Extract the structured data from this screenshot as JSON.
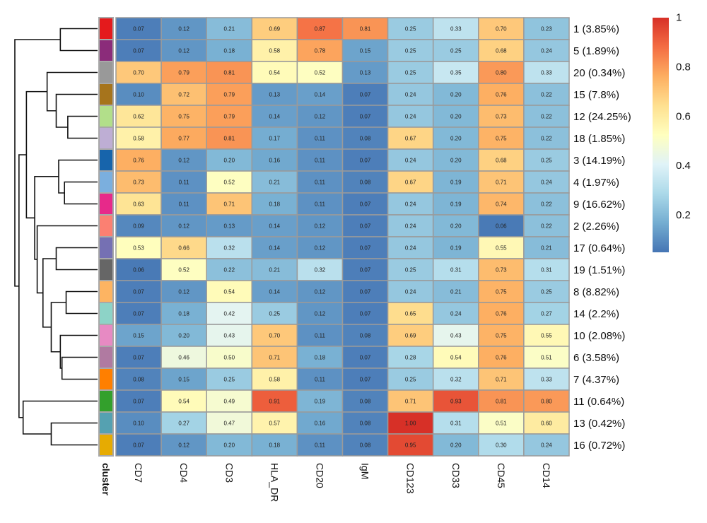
{
  "chart_data": {
    "type": "heatmap",
    "title": "",
    "columns": [
      "CD7",
      "CD4",
      "CD3",
      "HLA_DR",
      "CD20",
      "IgM",
      "CD123",
      "CD33",
      "CD45",
      "CD14"
    ],
    "rows": [
      {
        "cluster": "1",
        "label": "1 (3.85%)",
        "color": "#E41A1C",
        "values": [
          0.07,
          0.12,
          0.21,
          0.69,
          0.87,
          0.81,
          0.25,
          0.33,
          0.7,
          0.23
        ]
      },
      {
        "cluster": "5",
        "label": "5 (1.89%)",
        "color": "#8B2C7A",
        "values": [
          0.07,
          0.12,
          0.18,
          0.58,
          0.78,
          0.15,
          0.25,
          0.25,
          0.68,
          0.24
        ]
      },
      {
        "cluster": "20",
        "label": "20 (0.34%)",
        "color": "#999999",
        "values": [
          0.7,
          0.79,
          0.81,
          0.54,
          0.52,
          0.13,
          0.25,
          0.35,
          0.8,
          0.33
        ]
      },
      {
        "cluster": "15",
        "label": "15 (7.8%)",
        "color": "#A6741C",
        "values": [
          0.1,
          0.72,
          0.79,
          0.13,
          0.14,
          0.07,
          0.24,
          0.2,
          0.76,
          0.22
        ]
      },
      {
        "cluster": "12",
        "label": "12 (24.25%)",
        "color": "#B2DF8A",
        "values": [
          0.62,
          0.75,
          0.79,
          0.14,
          0.12,
          0.07,
          0.24,
          0.2,
          0.73,
          0.22
        ]
      },
      {
        "cluster": "18",
        "label": "18 (1.85%)",
        "color": "#BEAED4",
        "values": [
          0.58,
          0.77,
          0.81,
          0.17,
          0.11,
          0.08,
          0.67,
          0.2,
          0.75,
          0.22
        ]
      },
      {
        "cluster": "3",
        "label": "3 (14.19%)",
        "color": "#1764AB",
        "values": [
          0.76,
          0.12,
          0.2,
          0.16,
          0.11,
          0.07,
          0.24,
          0.2,
          0.68,
          0.25
        ]
      },
      {
        "cluster": "4",
        "label": "4 (1.97%)",
        "color": "#7BAFDE",
        "values": [
          0.73,
          0.11,
          0.52,
          0.21,
          0.11,
          0.08,
          0.67,
          0.19,
          0.71,
          0.24
        ]
      },
      {
        "cluster": "9",
        "label": "9 (16.62%)",
        "color": "#E7298A",
        "values": [
          0.63,
          0.11,
          0.71,
          0.18,
          0.11,
          0.07,
          0.24,
          0.19,
          0.74,
          0.22
        ]
      },
      {
        "cluster": "2",
        "label": "2 (2.26%)",
        "color": "#FB8072",
        "values": [
          0.09,
          0.12,
          0.13,
          0.14,
          0.12,
          0.07,
          0.24,
          0.2,
          0.06,
          0.22
        ]
      },
      {
        "cluster": "17",
        "label": "17 (0.64%)",
        "color": "#7570B3",
        "values": [
          0.53,
          0.66,
          0.32,
          0.14,
          0.12,
          0.07,
          0.24,
          0.19,
          0.55,
          0.21
        ]
      },
      {
        "cluster": "19",
        "label": "19 (1.51%)",
        "color": "#666666",
        "values": [
          0.06,
          0.52,
          0.22,
          0.21,
          0.32,
          0.07,
          0.25,
          0.31,
          0.73,
          0.31
        ]
      },
      {
        "cluster": "8",
        "label": "8 (8.82%)",
        "color": "#FDB462",
        "values": [
          0.07,
          0.12,
          0.54,
          0.14,
          0.12,
          0.07,
          0.24,
          0.21,
          0.75,
          0.25
        ]
      },
      {
        "cluster": "14",
        "label": "14 (2.2%)",
        "color": "#8DD3C7",
        "values": [
          0.07,
          0.18,
          0.42,
          0.25,
          0.12,
          0.07,
          0.65,
          0.24,
          0.76,
          0.27
        ]
      },
      {
        "cluster": "10",
        "label": "10 (2.08%)",
        "color": "#E78AC3",
        "values": [
          0.15,
          0.2,
          0.43,
          0.7,
          0.11,
          0.08,
          0.69,
          0.43,
          0.75,
          0.55
        ]
      },
      {
        "cluster": "6",
        "label": "6 (3.58%)",
        "color": "#B07AA1",
        "values": [
          0.07,
          0.46,
          0.5,
          0.71,
          0.18,
          0.07,
          0.28,
          0.54,
          0.76,
          0.51
        ]
      },
      {
        "cluster": "7",
        "label": "7 (4.37%)",
        "color": "#FF7F00",
        "values": [
          0.08,
          0.15,
          0.25,
          0.58,
          0.11,
          0.07,
          0.25,
          0.32,
          0.71,
          0.33
        ]
      },
      {
        "cluster": "11",
        "label": "11 (0.64%)",
        "color": "#33A02C",
        "values": [
          0.07,
          0.54,
          0.49,
          0.91,
          0.19,
          0.08,
          0.71,
          0.93,
          0.81,
          0.8
        ]
      },
      {
        "cluster": "13",
        "label": "13 (0.42%)",
        "color": "#55A1B1",
        "values": [
          0.1,
          0.27,
          0.47,
          0.57,
          0.16,
          0.08,
          1.0,
          0.31,
          0.51,
          0.6
        ]
      },
      {
        "cluster": "16",
        "label": "16 (0.72%)",
        "color": "#E6AB02",
        "values": [
          0.07,
          0.12,
          0.2,
          0.18,
          0.11,
          0.08,
          0.95,
          0.2,
          0.3,
          0.24
        ]
      }
    ],
    "annotation_label": "cluster",
    "color_scale": {
      "range": [
        0.05,
        1.0
      ],
      "stops": [
        "#4575B4",
        "#74ADD1",
        "#ABD9E9",
        "#E0F3F8",
        "#FFFFBF",
        "#FEE090",
        "#FDAE61",
        "#F46D43",
        "#D73027"
      ],
      "legend_ticks": [
        "0.2",
        "0.4",
        "0.6",
        "0.8",
        "1"
      ],
      "legend_tick_values": [
        0.2,
        0.4,
        0.6,
        0.8,
        1.0
      ],
      "legend_placement": "right"
    },
    "dendrogram": {
      "orientation": "left",
      "merges": [
        {
          "id": "a",
          "children": [
            "1",
            "5"
          ],
          "height": 0.45
        },
        {
          "id": "b1",
          "children": [
            "12",
            "18"
          ],
          "height": 0.36
        },
        {
          "id": "b2",
          "children": [
            "15",
            "b1"
          ],
          "height": 0.5
        },
        {
          "id": "b",
          "children": [
            "20",
            "b2"
          ],
          "height": 0.61
        },
        {
          "id": "c1",
          "children": [
            "4",
            "9"
          ],
          "height": 0.4
        },
        {
          "id": "c",
          "children": [
            "3",
            "c1"
          ],
          "height": 0.47
        },
        {
          "id": "e1",
          "children": [
            "17",
            "19"
          ],
          "height": 0.5
        },
        {
          "id": "e2",
          "children": [
            "8",
            "14"
          ],
          "height": 0.38
        },
        {
          "id": "e3",
          "children": [
            "6",
            "7"
          ],
          "height": 0.43
        },
        {
          "id": "e4",
          "children": [
            "10",
            "e3"
          ],
          "height": 0.45
        },
        {
          "id": "e5",
          "children": [
            "e2",
            "e4"
          ],
          "height": 0.56
        },
        {
          "id": "e6",
          "children": [
            "e1",
            "e5"
          ],
          "height": 0.66
        },
        {
          "id": "e",
          "children": [
            "2",
            "e6"
          ],
          "height": 0.73
        },
        {
          "id": "d",
          "children": [
            "c",
            "e"
          ],
          "height": 0.76
        },
        {
          "id": "f",
          "children": [
            "b",
            "d"
          ],
          "height": 0.86
        },
        {
          "id": "g1",
          "children": [
            "13",
            "16"
          ],
          "height": 0.56
        },
        {
          "id": "g",
          "children": [
            "11",
            "g1"
          ],
          "height": 0.9
        },
        {
          "id": "h",
          "children": [
            "f",
            "g"
          ],
          "height": 0.95
        },
        {
          "id": "root",
          "children": [
            "a",
            "h"
          ],
          "height": 1.0
        }
      ]
    }
  }
}
